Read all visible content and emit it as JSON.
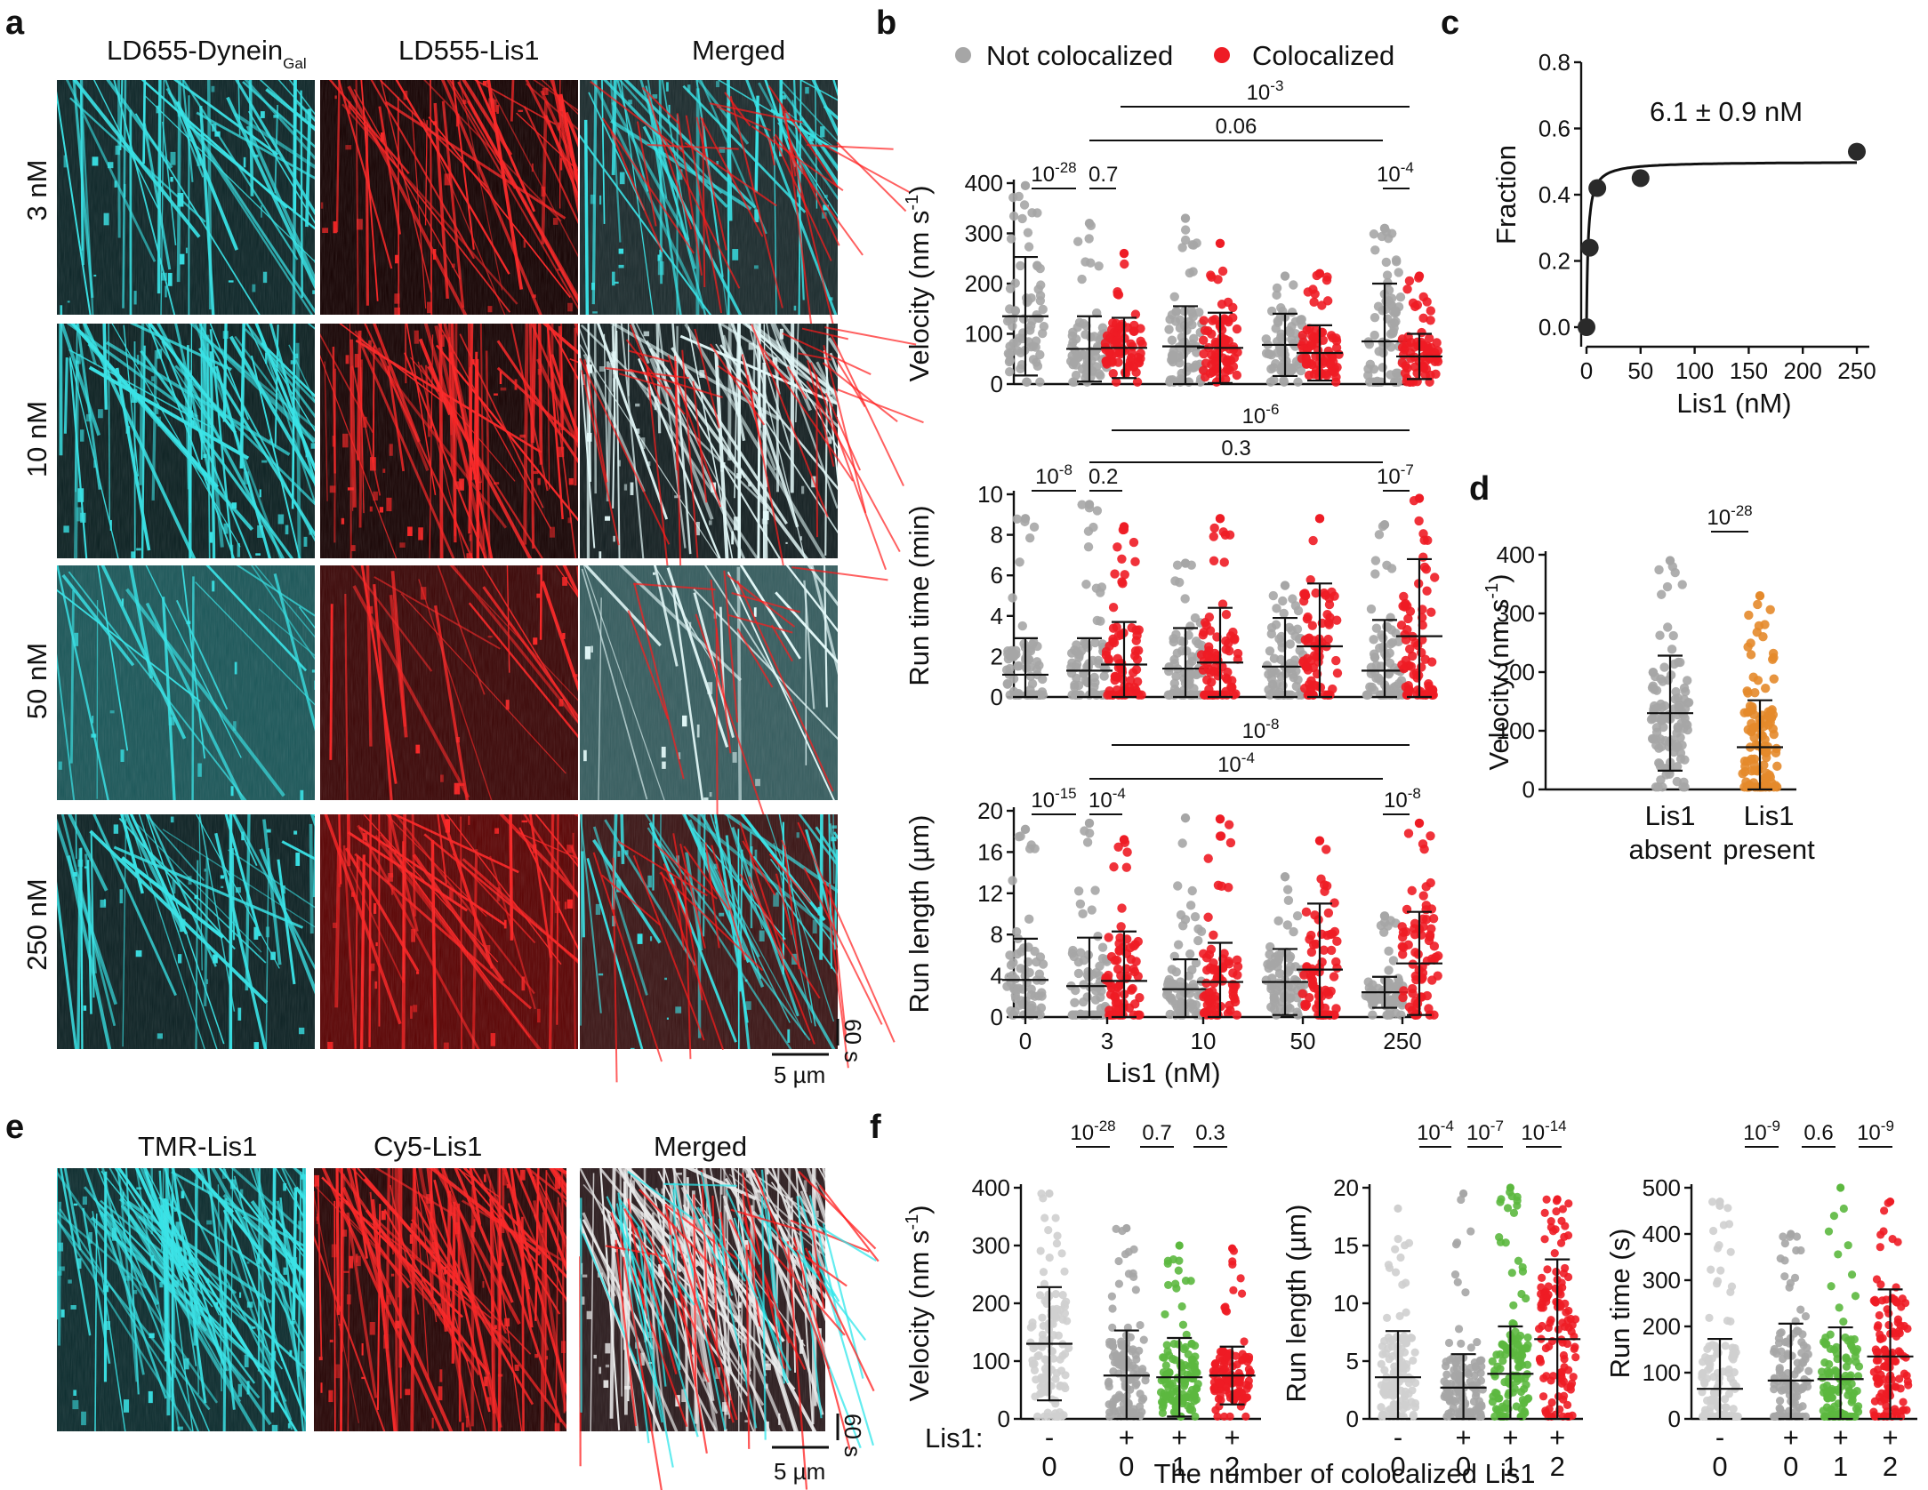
{
  "panel_labels": {
    "a": "a",
    "b": "b",
    "c": "c",
    "d": "d",
    "e": "e",
    "f": "f"
  },
  "panel_a": {
    "columns": [
      {
        "main": "LD655-Dynein",
        "sub": "Gal"
      },
      {
        "main": "LD555-Lis1",
        "sub": ""
      },
      {
        "main": "Merged",
        "sub": ""
      }
    ],
    "rows": [
      "3 nM",
      "10 nM",
      "50 nM",
      "250 nM"
    ],
    "time_scale": "60 s",
    "space_scale": "5 µm"
  },
  "panel_e": {
    "columns": [
      "TMR-Lis1",
      "Cy5-Lis1",
      "Merged"
    ],
    "time_scale": "60 s",
    "space_scale": "5 µm"
  },
  "colors": {
    "not_colocalized": "#a6a6a6",
    "colocalized": "#ee1c25",
    "lis1_present": "#e4892b",
    "one_lis1": "#5cb83f",
    "lis1_absent_light": "#cfcfcf",
    "cyan": "#2fe6ea",
    "red": "#ff1d1d"
  },
  "chart_data": [
    {
      "id": "b-velocity",
      "type": "scatter",
      "style": "dot-strip with mean ± SD",
      "legend": [
        "Not colocalized",
        "Colocalized"
      ],
      "xlabel": "Lis1 (nM)",
      "x_ticks": [
        "0",
        "3",
        "10",
        "50",
        "250"
      ],
      "ylabel": "Velocity (nm s",
      "ylabel_sup": "-1",
      "ylabel_end": ")",
      "ylim": [
        0,
        400
      ],
      "yticks": [
        0,
        100,
        200,
        300,
        400
      ],
      "groups": [
        {
          "x": "0",
          "series": "Not colocalized",
          "mean": 135,
          "sd": 118,
          "max": 395
        },
        {
          "x": "3",
          "series": "Not colocalized",
          "mean": 70,
          "sd": 65,
          "max": 320
        },
        {
          "x": "3",
          "series": "Colocalized",
          "mean": 72,
          "sd": 60,
          "max": 260
        },
        {
          "x": "10",
          "series": "Not colocalized",
          "mean": 75,
          "sd": 80,
          "max": 330
        },
        {
          "x": "10",
          "series": "Colocalized",
          "mean": 72,
          "sd": 70,
          "max": 280
        },
        {
          "x": "50",
          "series": "Not colocalized",
          "mean": 78,
          "sd": 62,
          "max": 215
        },
        {
          "x": "50",
          "series": "Colocalized",
          "mean": 62,
          "sd": 55,
          "max": 220
        },
        {
          "x": "250",
          "series": "Not colocalized",
          "mean": 85,
          "sd": 115,
          "max": 310
        },
        {
          "x": "250",
          "series": "Colocalized",
          "mean": 55,
          "sd": 45,
          "max": 215
        }
      ],
      "comparisons": [
        {
          "label": "10",
          "sup": "-28"
        },
        {
          "label": "0.7",
          "sup": ""
        },
        {
          "label": "0.06",
          "sup": ""
        },
        {
          "label": "10",
          "sup": "-3"
        },
        {
          "label": "10",
          "sup": "-4"
        }
      ]
    },
    {
      "id": "b-runtime",
      "type": "scatter",
      "style": "dot-strip with mean ± SD",
      "xlabel": "Lis1 (nM)",
      "ylabel": "Run time (min)",
      "ylim": [
        0,
        10
      ],
      "yticks": [
        0,
        2,
        4,
        6,
        8,
        10
      ],
      "groups": [
        {
          "x": "0",
          "series": "Not colocalized",
          "mean": 1.1,
          "sd": 1.8,
          "max": 8.8
        },
        {
          "x": "3",
          "series": "Not colocalized",
          "mean": 1.3,
          "sd": 1.6,
          "max": 9.5
        },
        {
          "x": "3",
          "series": "Colocalized",
          "mean": 1.6,
          "sd": 2.1,
          "max": 8.4
        },
        {
          "x": "10",
          "series": "Not colocalized",
          "mean": 1.4,
          "sd": 2.0,
          "max": 6.6
        },
        {
          "x": "10",
          "series": "Colocalized",
          "mean": 1.7,
          "sd": 2.7,
          "max": 8.8
        },
        {
          "x": "50",
          "series": "Not colocalized",
          "mean": 1.5,
          "sd": 2.4,
          "max": 5.5
        },
        {
          "x": "50",
          "series": "Colocalized",
          "mean": 2.5,
          "sd": 3.1,
          "max": 8.8
        },
        {
          "x": "250",
          "series": "Not colocalized",
          "mean": 1.3,
          "sd": 2.5,
          "max": 8.5
        },
        {
          "x": "250",
          "series": "Colocalized",
          "mean": 3.0,
          "sd": 3.8,
          "max": 9.8
        }
      ],
      "comparisons": [
        {
          "label": "10",
          "sup": "-8"
        },
        {
          "label": "0.2",
          "sup": ""
        },
        {
          "label": "0.3",
          "sup": ""
        },
        {
          "label": "10",
          "sup": "-6"
        },
        {
          "label": "10",
          "sup": "-7"
        }
      ]
    },
    {
      "id": "b-runlength",
      "type": "scatter",
      "style": "dot-strip with mean ± SD",
      "xlabel": "Lis1 (nM)",
      "ylabel": "Run length (µm)",
      "ylim": [
        0,
        20
      ],
      "yticks": [
        0,
        4,
        8,
        12,
        16,
        20
      ],
      "groups": [
        {
          "x": "0",
          "series": "Not colocalized",
          "mean": 3.6,
          "sd": 4.0,
          "max": 18.2
        },
        {
          "x": "3",
          "series": "Not colocalized",
          "mean": 3.0,
          "sd": 4.7,
          "max": 18.8
        },
        {
          "x": "3",
          "series": "Colocalized",
          "mean": 3.5,
          "sd": 4.8,
          "max": 17.2
        },
        {
          "x": "10",
          "series": "Not colocalized",
          "mean": 2.7,
          "sd": 2.9,
          "max": 19.3
        },
        {
          "x": "10",
          "series": "Colocalized",
          "mean": 3.4,
          "sd": 3.8,
          "max": 19.2
        },
        {
          "x": "50",
          "series": "Not colocalized",
          "mean": 3.4,
          "sd": 3.2,
          "max": 13.6
        },
        {
          "x": "50",
          "series": "Colocalized",
          "mean": 4.6,
          "sd": 6.4,
          "max": 17.1
        },
        {
          "x": "250",
          "series": "Not colocalized",
          "mean": 2.4,
          "sd": 1.5,
          "max": 9.8
        },
        {
          "x": "250",
          "series": "Colocalized",
          "mean": 5.2,
          "sd": 5.0,
          "max": 18.8
        }
      ],
      "comparisons": [
        {
          "label": "10",
          "sup": "-15"
        },
        {
          "label": "10",
          "sup": "-4"
        },
        {
          "label": "10",
          "sup": "-4"
        },
        {
          "label": "10",
          "sup": "-8"
        },
        {
          "label": "10",
          "sup": "-8"
        }
      ]
    },
    {
      "id": "c",
      "type": "scatter",
      "style": "binding curve fit",
      "xlabel": "Lis1 (nM)",
      "ylabel": "Fraction",
      "xlim": [
        0,
        250
      ],
      "xticks": [
        0,
        50,
        100,
        150,
        200,
        250
      ],
      "ylim": [
        0,
        0.8
      ],
      "yticks": [
        "0.0",
        "0.2",
        "0.4",
        "0.6",
        "0.8"
      ],
      "points": [
        {
          "x": 0,
          "y": 0.0
        },
        {
          "x": 3,
          "y": 0.24
        },
        {
          "x": 10,
          "y": 0.42
        },
        {
          "x": 50,
          "y": 0.45
        },
        {
          "x": 250,
          "y": 0.53
        }
      ],
      "fit": {
        "bmax": 0.5,
        "kd": 6.1
      },
      "annotation": "6.1 ± 0.9 nM"
    },
    {
      "id": "d",
      "type": "scatter",
      "style": "dot-strip with mean ± SD",
      "ylabel": "Velocity (nm s",
      "ylabel_sup": "-1",
      "ylabel_end": ")",
      "ylim": [
        0,
        400
      ],
      "yticks": [
        0,
        100,
        200,
        300,
        400
      ],
      "categories": [
        {
          "line1": "Lis1",
          "line2": "absent"
        },
        {
          "line1": "Lis1",
          "line2": "present"
        }
      ],
      "groups": [
        {
          "x": "Lis1 absent",
          "mean": 130,
          "sd": 98,
          "max": 390
        },
        {
          "x": "Lis1 present",
          "mean": 72,
          "sd": 80,
          "max": 330
        }
      ],
      "comparisons": [
        {
          "label": "10",
          "sup": "-28"
        }
      ]
    },
    {
      "id": "f-velocity",
      "type": "scatter",
      "style": "dot-strip with mean ± SD",
      "ylabel": "Velocity (nm s",
      "ylabel_sup": "-1",
      "ylabel_end": ")",
      "ylim": [
        0,
        400
      ],
      "yticks": [
        0,
        100,
        200,
        300,
        400
      ],
      "row_label": "Lis1:",
      "groups": [
        {
          "sign": "-",
          "count": "0",
          "mean": 130,
          "sd": 98,
          "max": 390
        },
        {
          "sign": "+",
          "count": "0",
          "mean": 75,
          "sd": 78,
          "max": 330
        },
        {
          "sign": "+",
          "count": "1",
          "mean": 72,
          "sd": 68,
          "max": 300
        },
        {
          "sign": "+",
          "count": "2",
          "mean": 75,
          "sd": 50,
          "max": 295
        }
      ],
      "comparisons": [
        {
          "label": "10",
          "sup": "-28"
        },
        {
          "label": "0.7",
          "sup": ""
        },
        {
          "label": "0.3",
          "sup": ""
        }
      ]
    },
    {
      "id": "f-runlength",
      "type": "scatter",
      "style": "dot-strip with mean ± SD",
      "ylabel": "Run length (µm)",
      "ylim": [
        0,
        20
      ],
      "yticks": [
        0,
        5,
        10,
        15,
        20
      ],
      "groups": [
        {
          "sign": "-",
          "count": "0",
          "mean": 3.6,
          "sd": 4.0,
          "max": 18.2
        },
        {
          "sign": "+",
          "count": "0",
          "mean": 2.7,
          "sd": 2.9,
          "max": 19.5
        },
        {
          "sign": "+",
          "count": "1",
          "mean": 3.9,
          "sd": 4.1,
          "max": 20
        },
        {
          "sign": "+",
          "count": "2",
          "mean": 6.9,
          "sd": 6.9,
          "max": 19
        }
      ],
      "comparisons": [
        {
          "label": "10",
          "sup": "-4"
        },
        {
          "label": "10",
          "sup": "-7"
        },
        {
          "label": "10",
          "sup": "-14"
        }
      ]
    },
    {
      "id": "f-runtime",
      "type": "scatter",
      "style": "dot-strip with mean ± SD",
      "ylabel": "Run time (s)",
      "ylim": [
        0,
        500
      ],
      "yticks": [
        0,
        100,
        200,
        300,
        400,
        500
      ],
      "groups": [
        {
          "sign": "-",
          "count": "0",
          "mean": 65,
          "sd": 108,
          "max": 470
        },
        {
          "sign": "+",
          "count": "0",
          "mean": 83,
          "sd": 123,
          "max": 400
        },
        {
          "sign": "+",
          "count": "1",
          "mean": 86,
          "sd": 112,
          "max": 500
        },
        {
          "sign": "+",
          "count": "2",
          "mean": 135,
          "sd": 145,
          "max": 470
        }
      ],
      "comparisons": [
        {
          "label": "10",
          "sup": "-9"
        },
        {
          "label": "0.6",
          "sup": ""
        },
        {
          "label": "10",
          "sup": "-9"
        }
      ]
    }
  ],
  "panel_f_xlabel": "The number of colocalized Lis1"
}
